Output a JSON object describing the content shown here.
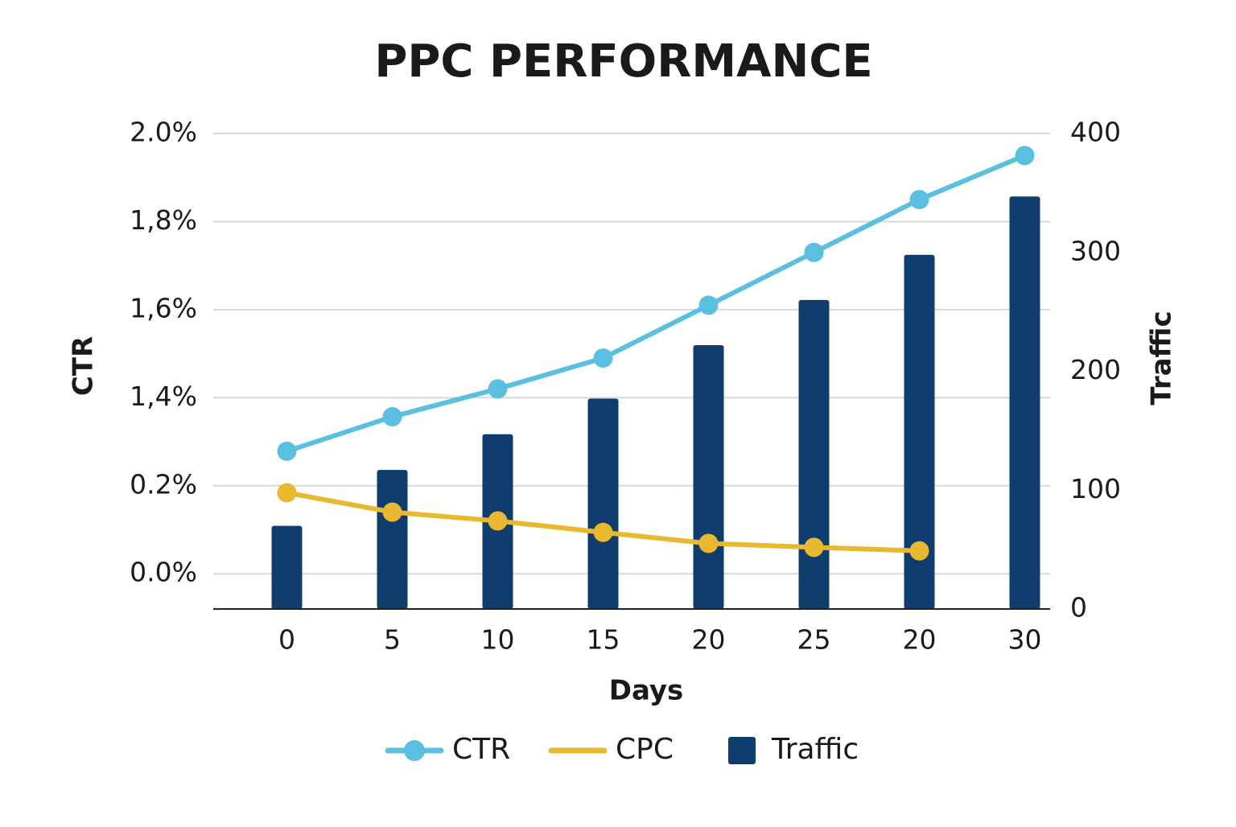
{
  "chart_data": {
    "type": "combo",
    "title": "PPC PERFORMANCE",
    "x_label": "Days",
    "y_label": "CTR",
    "y2_label": "Traffic",
    "categories": [
      "0",
      "5",
      "10",
      "15",
      "20",
      "25",
      "20",
      "30"
    ],
    "series": [
      {
        "name": "CTR",
        "type": "line",
        "marker": true,
        "axis": "y",
        "color": "#5bbfe0",
        "values": [
          0.67,
          1.14,
          1.42,
          1.49,
          1.61,
          1.73,
          1.85,
          1.95
        ]
      },
      {
        "name": "CPC",
        "type": "line",
        "marker": true,
        "axis": "y",
        "color": "#e8b92f",
        "values": [
          0.184,
          0.14,
          0.12,
          0.094,
          0.069,
          0.06,
          0.052,
          null
        ]
      },
      {
        "name": "Traffic",
        "type": "bar",
        "axis": "y2",
        "color": "#0e3d6e",
        "values": [
          70,
          117,
          147,
          177,
          222,
          260,
          298,
          347
        ]
      }
    ],
    "ylim": [
      -0.08,
      2.0
    ],
    "yticks": [
      {
        "value": 0,
        "label": "0.0%"
      },
      {
        "value": 0.2,
        "label": "0.2%"
      },
      {
        "value": 1.4,
        "label": "1,4%"
      },
      {
        "value": 1.6,
        "label": "1,6%"
      },
      {
        "value": 1.8,
        "label": "1,8%"
      },
      {
        "value": 2.0,
        "label": "2.0%"
      }
    ],
    "y2lim": [
      0,
      400
    ],
    "y2ticks": [
      0,
      100,
      200,
      300,
      400
    ],
    "grid": true
  }
}
